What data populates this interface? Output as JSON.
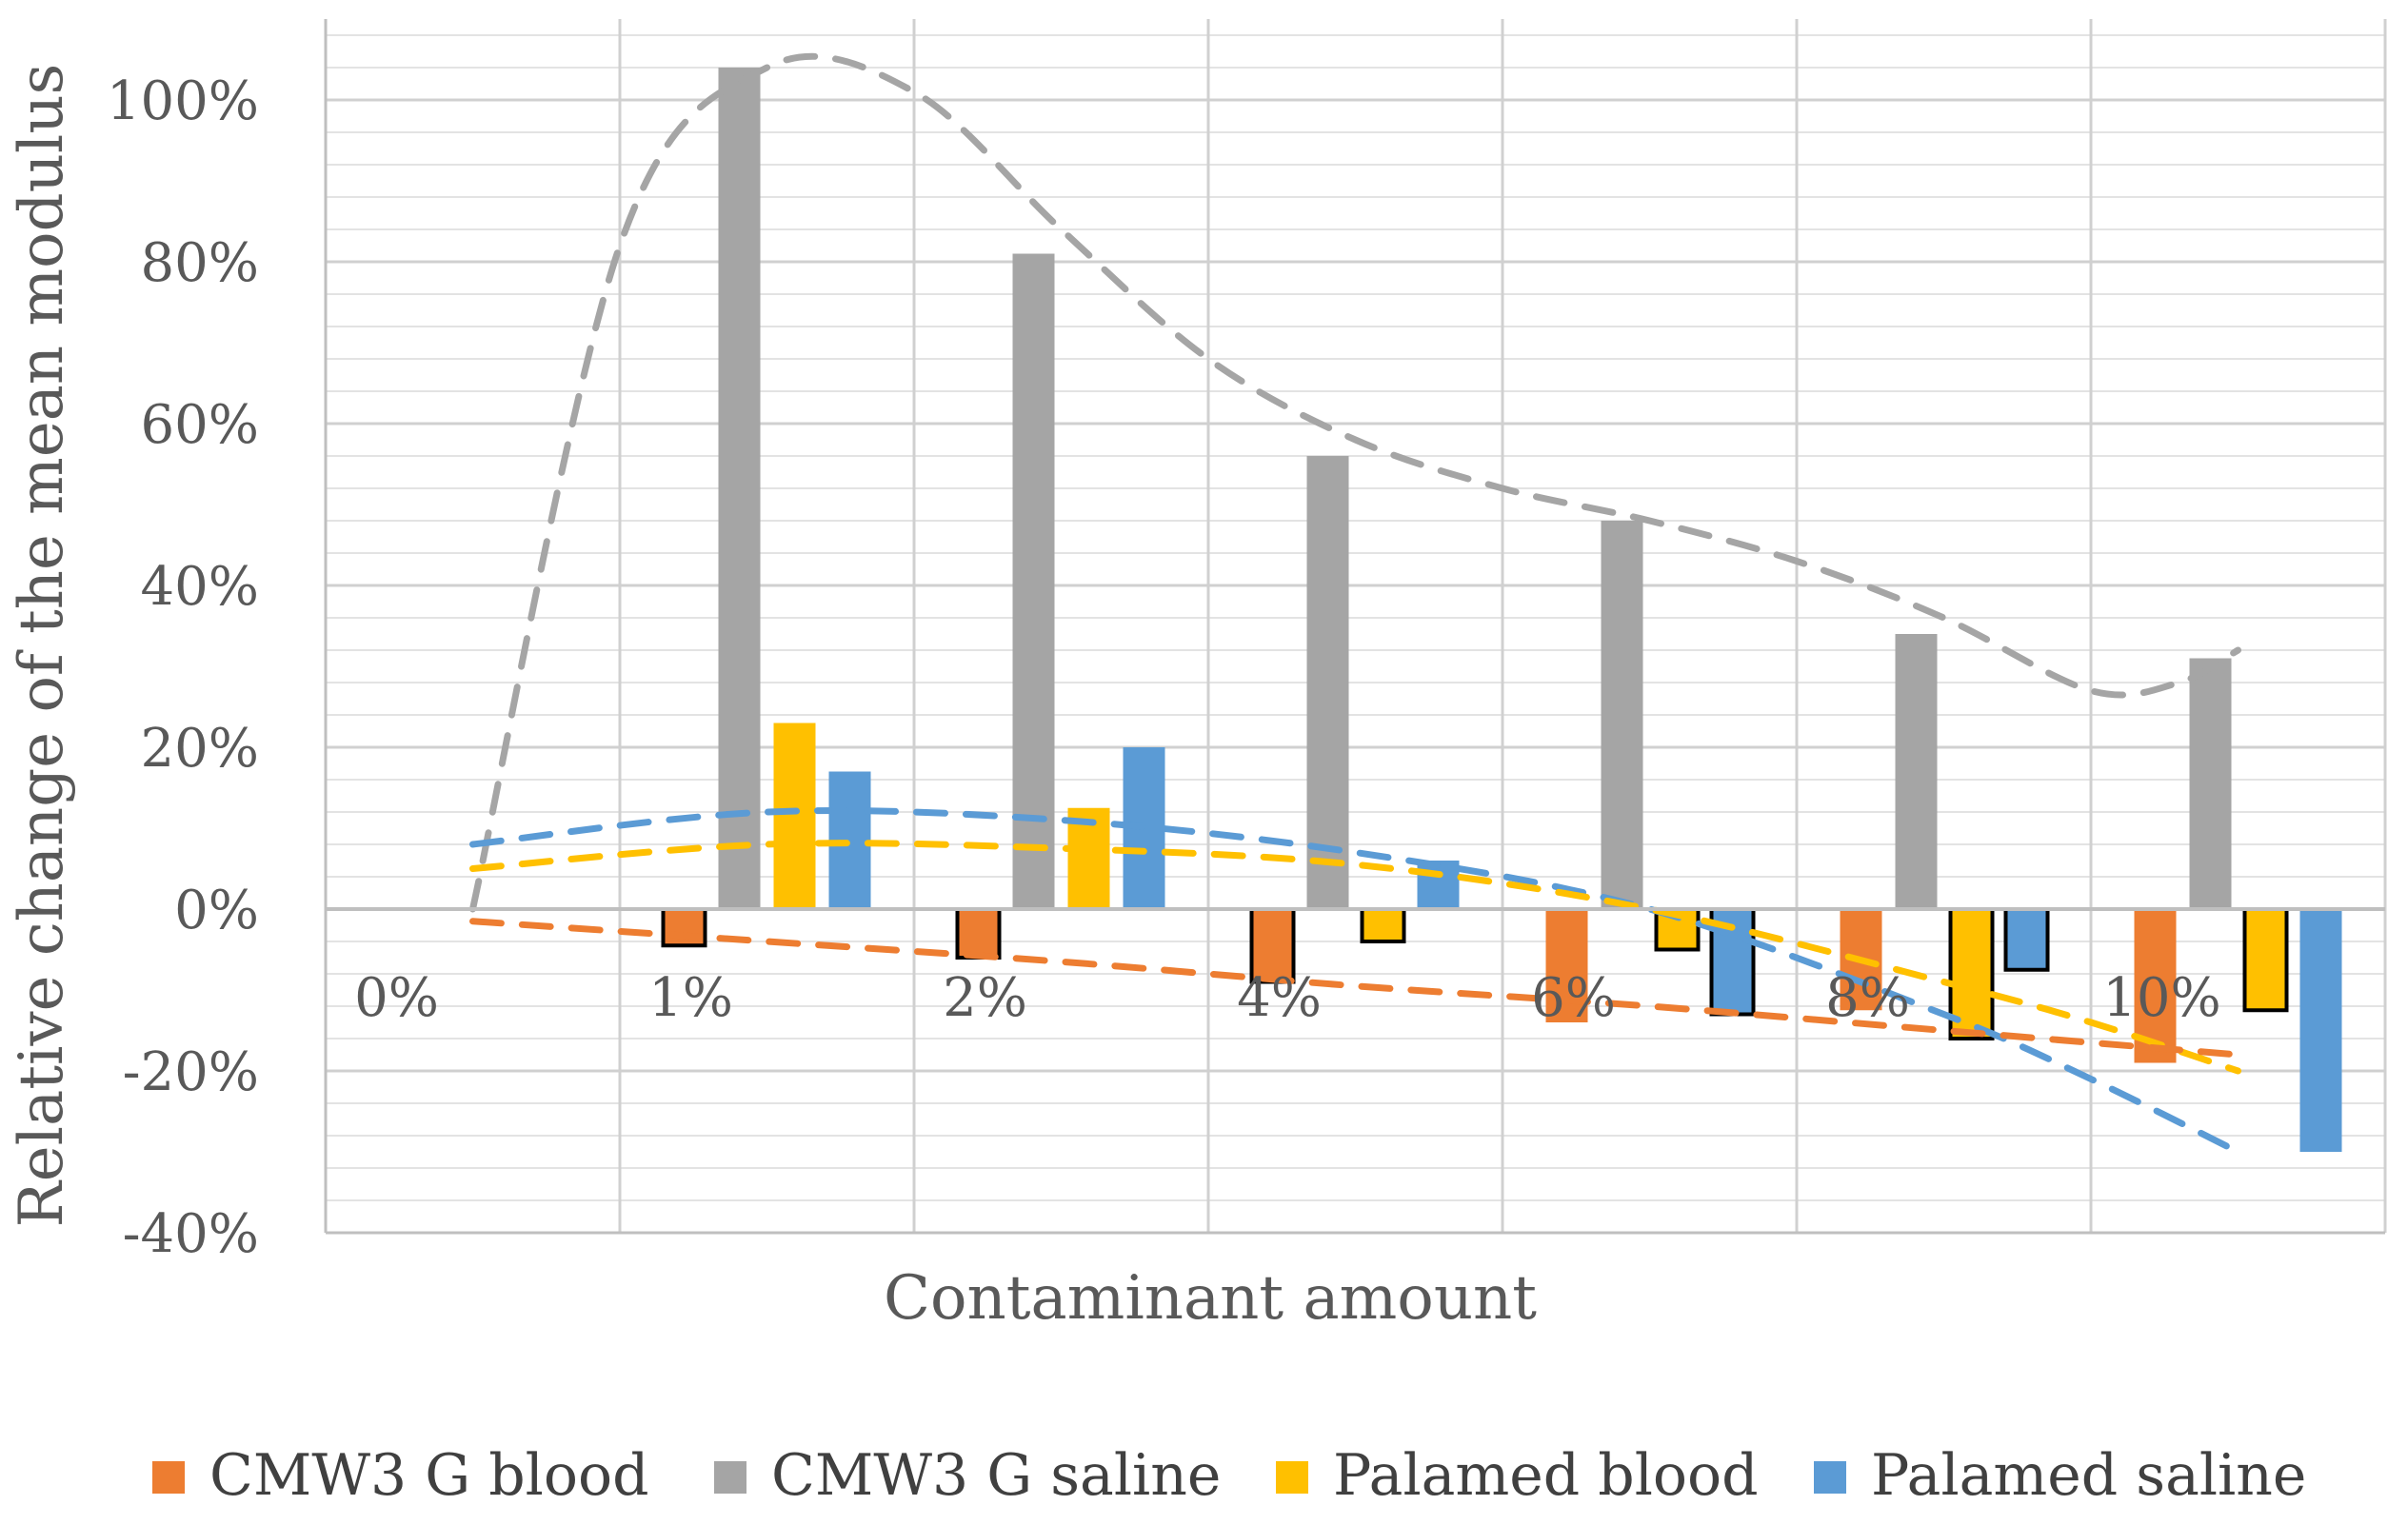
{
  "chart_data": {
    "type": "bar",
    "title": "",
    "xlabel": "Contaminant amount",
    "ylabel": "Relative change of the mean modulus",
    "categories": [
      "0%",
      "1%",
      "2%",
      "4%",
      "6%",
      "8%",
      "10%"
    ],
    "ylim": [
      -40,
      110
    ],
    "yticks": [
      -40,
      -20,
      0,
      20,
      40,
      60,
      80,
      100
    ],
    "ytick_labels": [
      "-40%",
      "-20%",
      "0%",
      "20%",
      "40%",
      "60%",
      "80%",
      "100%"
    ],
    "grid": true,
    "legend_position": "bottom",
    "series": [
      {
        "name": "CMW3 G blood",
        "color": "#ED7D31",
        "trend_color": "#ED7D31",
        "values": [
          0,
          -4.5,
          -6,
          -9,
          -14,
          -12.5,
          -19
        ]
      },
      {
        "name": "CMW3 G saline",
        "color": "#A5A5A5",
        "trend_color": "#A5A5A5",
        "values": [
          0,
          104,
          81,
          56,
          48,
          34,
          31
        ]
      },
      {
        "name": "Palamed blood",
        "color": "#FFC000",
        "trend_color": "#FFC000",
        "values": [
          0,
          23,
          12.5,
          -4,
          -5,
          -16,
          -12.5
        ]
      },
      {
        "name": "Palamed saline",
        "color": "#5B9BD5",
        "trend_color": "#5B9BD5",
        "values": [
          0,
          17,
          20,
          6,
          -13,
          -7.5,
          -30
        ]
      }
    ],
    "trendlines": [
      {
        "series": "CMW3 G saline",
        "style": "dashed",
        "points": [
          [
            0,
            0
          ],
          [
            0.5,
            82
          ],
          [
            1,
            104
          ],
          [
            1.5,
            101
          ],
          [
            2,
            84
          ],
          [
            2.5,
            68
          ],
          [
            3,
            58
          ],
          [
            3.5,
            52
          ],
          [
            4,
            48
          ],
          [
            4.5,
            43
          ],
          [
            5,
            36
          ],
          [
            5.5,
            27
          ],
          [
            5.8,
            28
          ],
          [
            6,
            32
          ]
        ]
      },
      {
        "series": "Palamed saline",
        "style": "dashed",
        "points": [
          [
            0,
            8
          ],
          [
            1,
            12
          ],
          [
            2,
            11
          ],
          [
            3,
            7
          ],
          [
            4,
            0
          ],
          [
            5,
            -13
          ],
          [
            5.5,
            -21
          ],
          [
            6,
            -30
          ]
        ]
      },
      {
        "series": "Palamed blood",
        "style": "dashed",
        "points": [
          [
            0,
            5
          ],
          [
            1,
            8
          ],
          [
            2,
            7.5
          ],
          [
            3,
            5.5
          ],
          [
            4,
            0
          ],
          [
            5,
            -9
          ],
          [
            5.5,
            -14
          ],
          [
            6,
            -20
          ]
        ]
      },
      {
        "series": "CMW3 G blood",
        "style": "dashed",
        "points": [
          [
            0,
            -1.5
          ],
          [
            1,
            -4
          ],
          [
            2,
            -6.5
          ],
          [
            3,
            -9.5
          ],
          [
            4,
            -12
          ],
          [
            5,
            -15
          ],
          [
            6,
            -18
          ]
        ]
      }
    ]
  }
}
